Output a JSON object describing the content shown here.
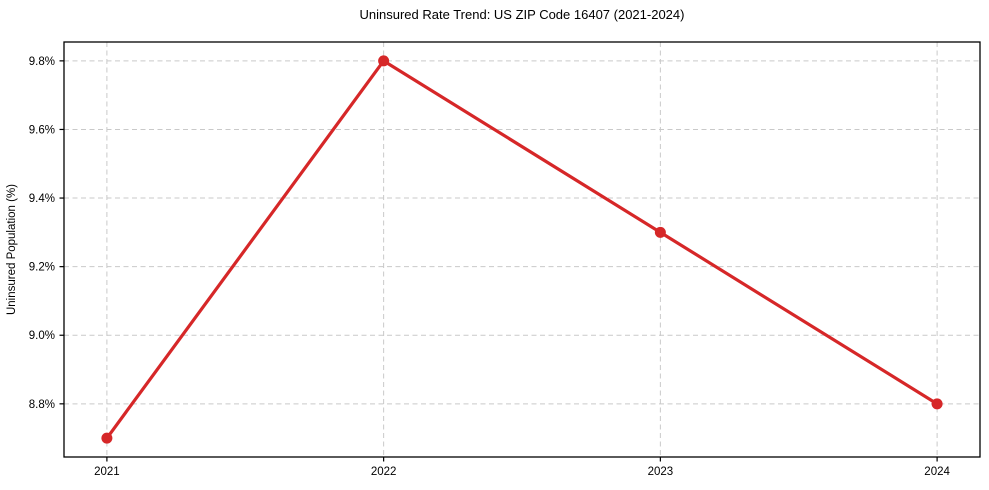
{
  "chart_data": {
    "type": "line",
    "title": "Uninsured Rate Trend: US ZIP Code 16407 (2021-2024)",
    "xlabel": "",
    "ylabel": "Uninsured Population (%)",
    "x": [
      2021,
      2022,
      2023,
      2024
    ],
    "series": [
      {
        "name": "Uninsured rate",
        "values": [
          8.7,
          9.8,
          9.3,
          8.8
        ],
        "color": "#d62728",
        "marker": "circle",
        "marker_radius": 5.5,
        "line_width": 3.2
      }
    ],
    "xticks": {
      "values": [
        2021,
        2022,
        2023,
        2024
      ],
      "labels": [
        "2021",
        "2022",
        "2023",
        "2024"
      ]
    },
    "yticks": {
      "values": [
        8.8,
        9.0,
        9.2,
        9.4,
        9.6,
        9.8
      ],
      "labels": [
        "8.8%",
        "9.0%",
        "9.2%",
        "9.4%",
        "9.6%",
        "9.8%"
      ]
    },
    "xlim": [
      2020.845,
      2024.155
    ],
    "ylim": [
      8.645,
      9.855
    ],
    "grid": true,
    "grid_style": "dashed",
    "legend_position": "none",
    "colors": {
      "background": "#ffffff",
      "grid": "#c9c9c9",
      "axis": "#000000",
      "tick_label": "#000000"
    }
  }
}
